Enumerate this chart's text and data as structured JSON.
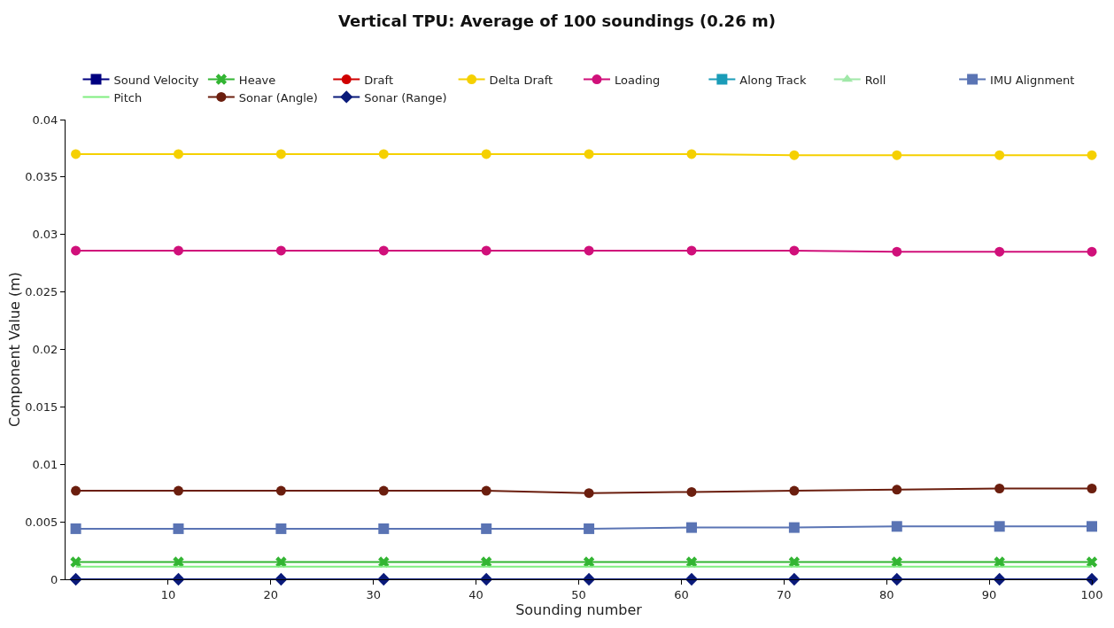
{
  "chart_data": {
    "type": "line",
    "title": "Vertical TPU: Average of 100 soundings (0.26 m)",
    "xlabel": "Sounding number",
    "ylabel": "Component Value (m)",
    "x": [
      1,
      11,
      21,
      31,
      41,
      51,
      61,
      71,
      81,
      91,
      100
    ],
    "series": [
      {
        "name": "Sound Velocity",
        "color": "#000080",
        "marker": "square",
        "values": [
          null,
          null,
          null,
          null,
          null,
          null,
          null,
          null,
          null,
          null,
          null
        ]
      },
      {
        "name": "Heave",
        "color": "#33b533",
        "marker": "cross",
        "values": [
          0.0015,
          0.0015,
          0.0015,
          0.0015,
          0.0015,
          0.0015,
          0.0015,
          0.0015,
          0.0015,
          0.0015,
          0.0015
        ]
      },
      {
        "name": "Draft",
        "color": "#d00000",
        "marker": "circle",
        "values": [
          null,
          null,
          null,
          null,
          null,
          null,
          null,
          null,
          null,
          null,
          null
        ]
      },
      {
        "name": "Delta Draft",
        "color": "#f5d000",
        "marker": "circle",
        "values": [
          0.037,
          0.037,
          0.037,
          0.037,
          0.037,
          0.037,
          0.037,
          0.0369,
          0.0369,
          0.0369,
          0.0369
        ]
      },
      {
        "name": "Loading",
        "color": "#d0107a",
        "marker": "circle",
        "values": [
          0.0286,
          0.0286,
          0.0286,
          0.0286,
          0.0286,
          0.0286,
          0.0286,
          0.0286,
          0.0285,
          0.0285,
          0.0285
        ]
      },
      {
        "name": "Along Track",
        "color": "#1a9cb8",
        "marker": "square",
        "values": [
          null,
          null,
          null,
          null,
          null,
          null,
          null,
          null,
          null,
          null,
          null
        ]
      },
      {
        "name": "Roll",
        "color": "#a0e8a8",
        "marker": "triangle",
        "values": [
          null,
          null,
          null,
          null,
          null,
          null,
          null,
          null,
          null,
          null,
          null
        ]
      },
      {
        "name": "IMU Alignment",
        "color": "#5a74b4",
        "marker": "square",
        "values": [
          0.0044,
          0.0044,
          0.0044,
          0.0044,
          0.0044,
          0.0044,
          0.0045,
          0.0045,
          0.0046,
          0.0046,
          0.0046
        ]
      },
      {
        "name": "Pitch",
        "color": "#80ee80",
        "marker": "none",
        "values": [
          0.0011,
          0.0011,
          0.0011,
          0.0011,
          0.0011,
          0.0011,
          0.0011,
          0.0011,
          0.0011,
          0.0011,
          0.0011
        ]
      },
      {
        "name": "Sonar (Angle)",
        "color": "#6b1e0e",
        "marker": "circle",
        "values": [
          0.0077,
          0.0077,
          0.0077,
          0.0077,
          0.0077,
          0.0075,
          0.0076,
          0.0077,
          0.0078,
          0.0079,
          0.0079
        ]
      },
      {
        "name": "Sonar (Range)",
        "color": "#0a1a7a",
        "marker": "diamond",
        "values": [
          0,
          0,
          0,
          0,
          0,
          0,
          0,
          0,
          0,
          0,
          0
        ]
      }
    ],
    "xlim": [
      0,
      100
    ],
    "xticks": [
      10,
      20,
      30,
      40,
      50,
      60,
      70,
      80,
      90,
      100
    ],
    "ylim": [
      0,
      0.04
    ],
    "yticks": [
      0,
      0.005,
      0.01,
      0.015,
      0.02,
      0.025,
      0.03,
      0.035,
      0.04
    ],
    "grid": false,
    "legend": "top",
    "line_style": "solid"
  }
}
